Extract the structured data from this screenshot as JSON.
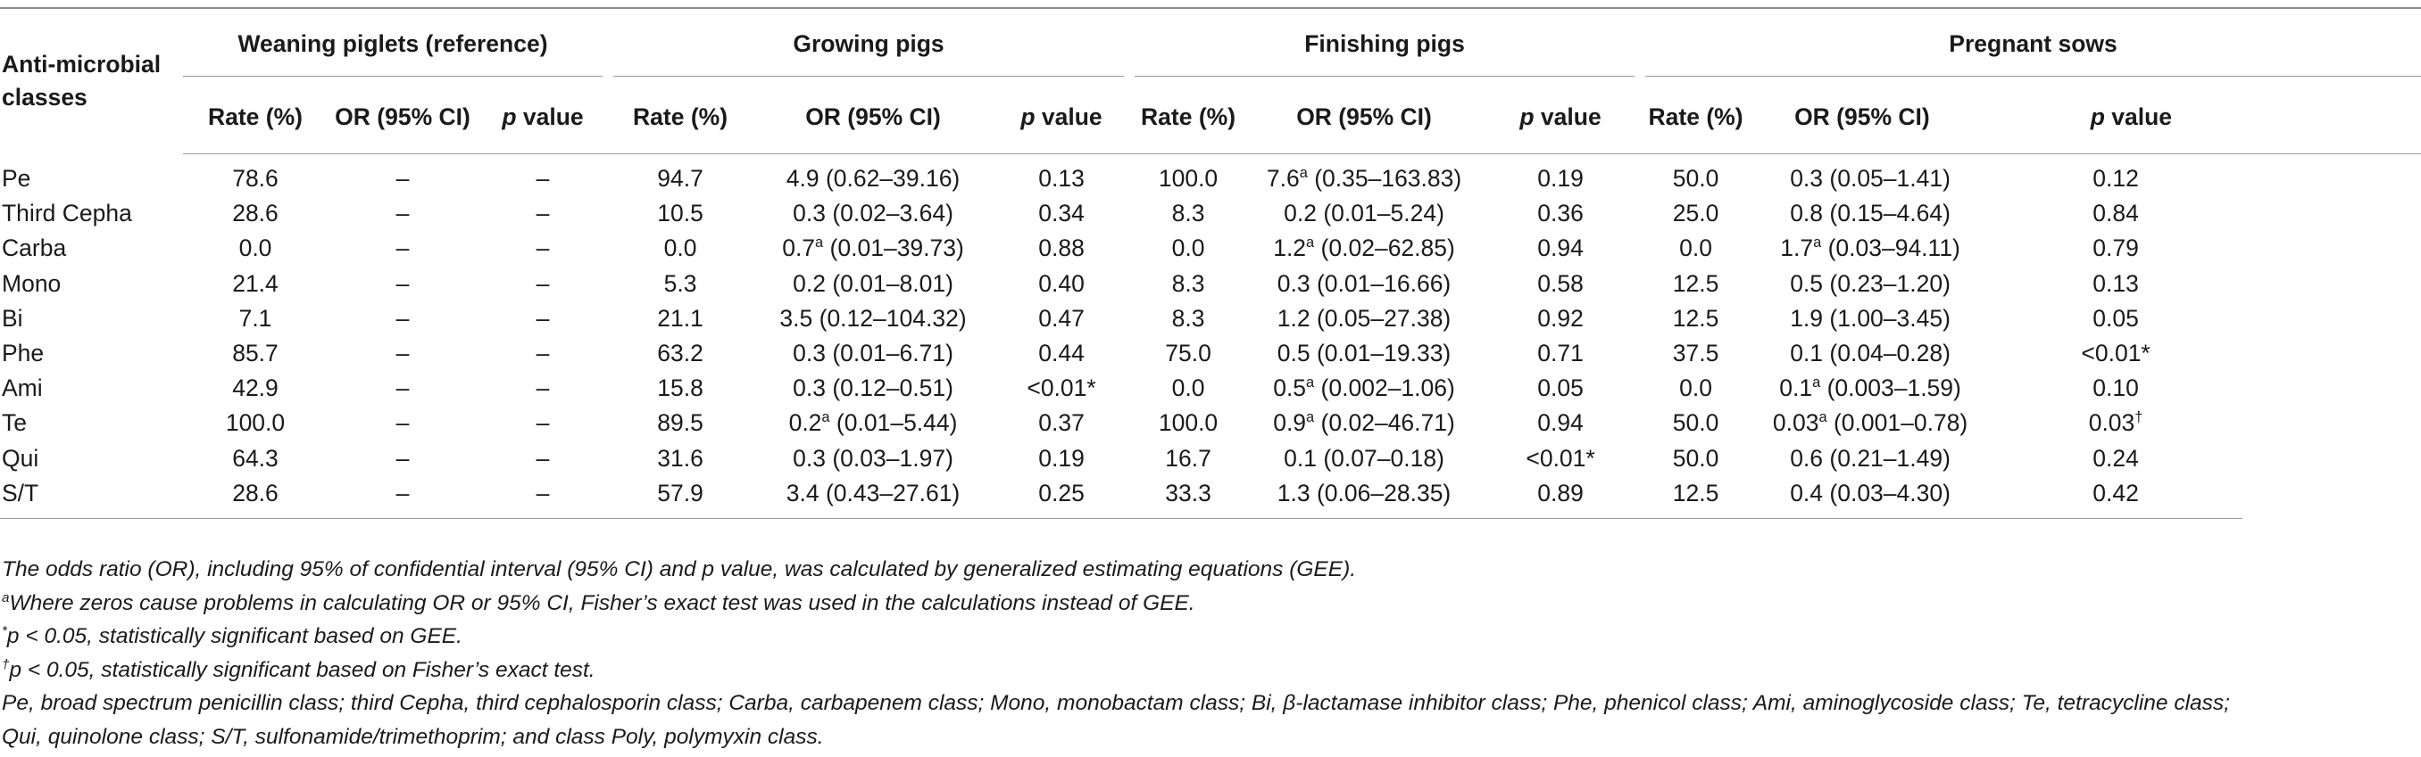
{
  "table": {
    "stub_header_line1": "Anti-microbial",
    "stub_header_line2": "classes",
    "groups": [
      "Weaning piglets (reference)",
      "Growing pigs",
      "Finishing pigs",
      "Pregnant sows"
    ],
    "col_rate": "Rate (%)",
    "col_or": "OR (95% CI)",
    "col_p_italic": "p",
    "col_p_rest": " value",
    "rows": [
      {
        "label": "Pe",
        "wr": "78.6",
        "wo": "–",
        "wp": "–",
        "gr": "94.7",
        "go": "4.9 (0.62–39.16)",
        "gp": "0.13",
        "fr": "100.0",
        "fo1": "7.6",
        "fos": "a",
        "fo2": " (0.35–163.83)",
        "fp": "0.19",
        "sr": "50.0",
        "so": "0.3 (0.05–1.41)",
        "sp": "0.12"
      },
      {
        "label": "Third Cepha",
        "wr": "28.6",
        "wo": "–",
        "wp": "–",
        "gr": "10.5",
        "go": "0.3 (0.02–3.64)",
        "gp": "0.34",
        "fr": "8.3",
        "fo": "0.2 (0.01–5.24)",
        "fp": "0.36",
        "sr": "25.0",
        "so": "0.8 (0.15–4.64)",
        "sp": "0.84"
      },
      {
        "label": "Carba",
        "wr": "0.0",
        "wo": "–",
        "wp": "–",
        "gr": "0.0",
        "go1": "0.7",
        "gos": "a",
        "go2": " (0.01–39.73)",
        "gp": "0.88",
        "fr": "0.0",
        "fo1": "1.2",
        "fos": "a",
        "fo2": " (0.02–62.85)",
        "fp": "0.94",
        "sr": "0.0",
        "so1": "1.7",
        "sos": "a",
        "so2": " (0.03–94.11)",
        "sp": "0.79"
      },
      {
        "label": "Mono",
        "wr": "21.4",
        "wo": "–",
        "wp": "–",
        "gr": "5.3",
        "go": "0.2 (0.01–8.01)",
        "gp": "0.40",
        "fr": "8.3",
        "fo": "0.3 (0.01–16.66)",
        "fp": "0.58",
        "sr": "12.5",
        "so": "0.5 (0.23–1.20)",
        "sp": "0.13"
      },
      {
        "label": "Bi",
        "wr": "7.1",
        "wo": "–",
        "wp": "–",
        "gr": "21.1",
        "go": "3.5 (0.12–104.32)",
        "gp": "0.47",
        "fr": "8.3",
        "fo": "1.2 (0.05–27.38)",
        "fp": "0.92",
        "sr": "12.5",
        "so": "1.9 (1.00–3.45)",
        "sp": "0.05"
      },
      {
        "label": "Phe",
        "wr": "85.7",
        "wo": "–",
        "wp": "–",
        "gr": "63.2",
        "go": "0.3 (0.01–6.71)",
        "gp": "0.44",
        "fr": "75.0",
        "fo": "0.5 (0.01–19.33)",
        "fp": "0.71",
        "sr": "37.5",
        "so": "0.1 (0.04–0.28)",
        "sp": "<0.01*"
      },
      {
        "label": "Ami",
        "wr": "42.9",
        "wo": "–",
        "wp": "–",
        "gr": "15.8",
        "go": "0.3 (0.12–0.51)",
        "gp": "<0.01*",
        "fr": "0.0",
        "fo1": "0.5",
        "fos": "a",
        "fo2": " (0.002–1.06)",
        "fp": "0.05",
        "sr": "0.0",
        "so1": "0.1",
        "sos": "a",
        "so2": " (0.003–1.59)",
        "sp": "0.10"
      },
      {
        "label": "Te",
        "wr": "100.0",
        "wo": "–",
        "wp": "–",
        "gr": "89.5",
        "go1": "0.2",
        "gos": "a",
        "go2": " (0.01–5.44)",
        "gp": "0.37",
        "fr": "100.0",
        "fo1": "0.9",
        "fos": "a",
        "fo2": " (0.02–46.71)",
        "fp": "0.94",
        "sr": "50.0",
        "so1": "0.03",
        "sos": "a",
        "so2": " (0.001–0.78)",
        "sp1": "0.03",
        "sps": "†"
      },
      {
        "label": "Qui",
        "wr": "64.3",
        "wo": "–",
        "wp": "–",
        "gr": "31.6",
        "go": "0.3 (0.03–1.97)",
        "gp": "0.19",
        "fr": "16.7",
        "fo": "0.1 (0.07–0.18)",
        "fp": "<0.01*",
        "sr": "50.0",
        "so": "0.6 (0.21–1.49)",
        "sp": "0.24"
      },
      {
        "label": "S/T",
        "wr": "28.6",
        "wo": "–",
        "wp": "–",
        "gr": "57.9",
        "go": "3.4 (0.43–27.61)",
        "gp": "0.25",
        "fr": "33.3",
        "fo": "1.3 (0.06–28.35)",
        "fp": "0.89",
        "sr": "12.5",
        "so": "0.4 (0.03–4.30)",
        "sp": "0.42"
      }
    ]
  },
  "notes": {
    "n1": "The odds ratio (OR), including 95% of confidential interval (95% CI) and p value, was calculated by generalized estimating equations (GEE).",
    "n2_mark": "a",
    "n2": "Where zeros cause problems in calculating OR or 95% CI, Fisher’s exact test was used in the calculations instead of GEE.",
    "n3_mark": "*",
    "n3": "p < 0.05, statistically significant based on GEE.",
    "n4_mark": "†",
    "n4": "p < 0.05, statistically significant based on Fisher’s exact test.",
    "n5a": "Pe, broad spectrum penicillin class; third Cepha, third cephalosporin class; Carba, carbapenem class; Mono, monobactam class; Bi, β-lactamase inhibitor class; Phe, phenicol class; Ami, aminoglycoside class; Te, tetracycline class;",
    "n5b": "Qui, quinolone class; S/T, sulfonamide/trimethoprim; and class Poly, polymyxin class."
  }
}
